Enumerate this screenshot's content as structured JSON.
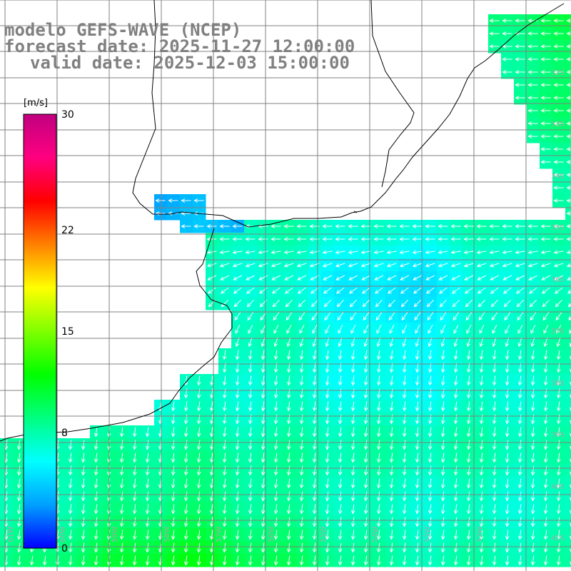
{
  "title": {
    "model": "modelo GEFS-WAVE (NCEP)",
    "forecast": "forecast date: 2025-11-27 12:00:00",
    "valid": "valid date: 2025-12-03 15:00:00"
  },
  "colorbar": {
    "unit": "[m/s]",
    "min": 0,
    "max": 30,
    "ticks": [
      "30",
      "22",
      "15",
      "8",
      "0"
    ],
    "tick_values": [
      30,
      22,
      15,
      8,
      0
    ],
    "colors": [
      "#0000ff",
      "#00a0ff",
      "#00ffff",
      "#00ff80",
      "#00ff00",
      "#80ff00",
      "#ffff00",
      "#ff8000",
      "#ff0000",
      "#ff0080",
      "#c00080"
    ]
  },
  "map": {
    "quantity": "wind speed",
    "lon_range": [
      -62,
      -51
    ],
    "lat_range": [
      -44.5,
      -31
    ],
    "lat_labels": [
      "32S",
      "33S",
      "34S",
      "35S",
      "36S",
      "37S",
      "38S",
      "39S",
      "40S",
      "41S"
    ],
    "lon_labels": [
      "61W",
      "60W",
      "59W",
      "58W",
      "57W",
      "56W",
      "55W",
      "54W",
      "53W",
      "52W"
    ],
    "land_color": "#ffffff",
    "grid_color": "#808080",
    "arrow_color": "#ffffff"
  }
}
